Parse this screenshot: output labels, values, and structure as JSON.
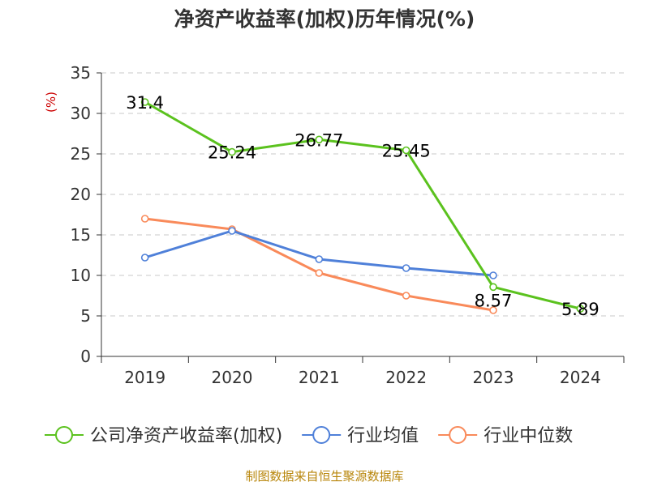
{
  "chart_data": {
    "type": "line",
    "title": "净资产收益率(加权)历年情况(%)",
    "ylabel": "(%)",
    "categories": [
      "2019",
      "2020",
      "2021",
      "2022",
      "2023",
      "2024"
    ],
    "ylim": [
      0,
      35
    ],
    "yticks": [
      0,
      5,
      10,
      15,
      20,
      25,
      30,
      35
    ],
    "grid": true,
    "legend_position": "bottom",
    "series": [
      {
        "name": "公司净资产收益率(加权)",
        "color": "#5bc21e",
        "values": [
          31.4,
          25.24,
          26.77,
          25.45,
          8.57,
          5.89
        ],
        "labels": [
          "31.4",
          "25.24",
          "26.77",
          "25.45",
          "8.57",
          "5.89"
        ]
      },
      {
        "name": "行业均值",
        "color": "#4f80d9",
        "values": [
          12.2,
          15.5,
          12.0,
          10.9,
          10.0,
          null
        ],
        "labels": []
      },
      {
        "name": "行业中位数",
        "color": "#f98a5a",
        "values": [
          17.0,
          15.7,
          10.3,
          7.5,
          5.7,
          null
        ],
        "labels": []
      }
    ]
  },
  "source": "制图数据来自恒生聚源数据库"
}
